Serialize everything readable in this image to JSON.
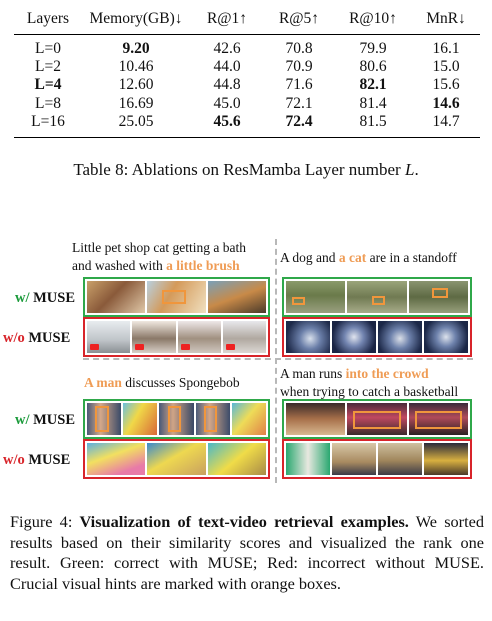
{
  "table": {
    "headers": [
      "Layers",
      "Memory(GB)↓",
      "R@1↑",
      "R@5↑",
      "R@10↑",
      "MnR↓"
    ],
    "rows": [
      [
        "L=0",
        "9.20",
        "42.6",
        "70.8",
        "79.9",
        "16.1"
      ],
      [
        "L=2",
        "10.46",
        "44.0",
        "70.9",
        "80.6",
        "15.0"
      ],
      [
        "L=4",
        "12.60",
        "44.8",
        "71.6",
        "82.1",
        "15.6"
      ],
      [
        "L=8",
        "16.69",
        "45.0",
        "72.1",
        "81.4",
        "14.6"
      ],
      [
        "L=16",
        "25.05",
        "45.6",
        "72.4",
        "81.5",
        "14.7"
      ]
    ],
    "bold_cells": [
      [
        0,
        1
      ],
      [
        2,
        0
      ],
      [
        2,
        4
      ],
      [
        3,
        5
      ],
      [
        4,
        2
      ],
      [
        4,
        3
      ]
    ],
    "caption_prefix": "Table 8: Ablations on ResMamba Layer number ",
    "caption_var": "L",
    "caption_suffix": "."
  },
  "figure": {
    "labels": {
      "with_prefix": "w/",
      "without_prefix": "w/o",
      "model": "MUSE"
    },
    "queries": {
      "q1_line1": "Little pet shop cat getting a bath",
      "q1_line2_pre": "and washed with ",
      "q1_line2_hl": "a little brush",
      "q2_pre": "A dog and ",
      "q2_hl": "a cat",
      "q2_post": " are in a standoff",
      "q3_hl": "A man",
      "q3_post": " discusses Spongebob",
      "q4_line1_pre": "A man runs ",
      "q4_line1_hl": "into the crowd",
      "q4_line2": "when trying to catch a basketball"
    },
    "colors": {
      "correct_border": "#2fa84a",
      "incorrect_border": "#d8242a",
      "hint_box": "#f0963c",
      "highlight_text": "#ef9c55"
    }
  },
  "figure_caption": {
    "label": "Figure 4: ",
    "bold": "Visualization of text-video retrieval examples.",
    "body": " We sorted results based on their similarity scores and visualized the rank one result. Green: correct with MUSE; Red: incorrect without MUSE. Crucial visual hints are marked with orange boxes."
  }
}
